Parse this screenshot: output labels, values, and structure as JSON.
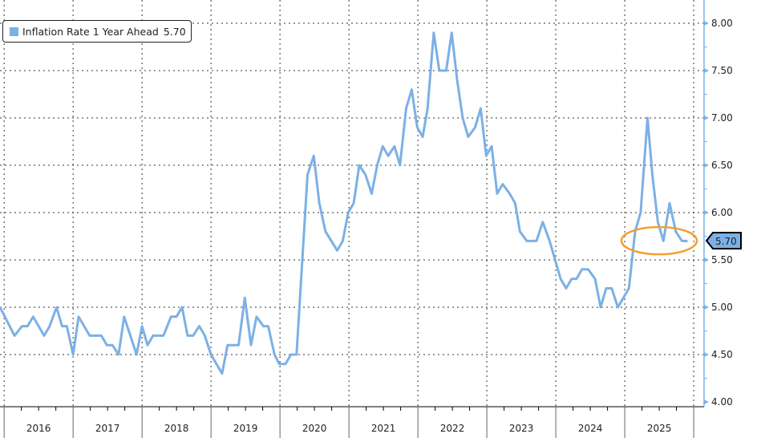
{
  "chart_data": {
    "type": "line",
    "title": "",
    "xlabel": "",
    "ylabel": "",
    "xlim": [
      2015.94,
      2026.15
    ],
    "ylim": [
      4.0,
      8.0
    ],
    "grid": true,
    "y_ticks": [
      "4.00",
      "4.50",
      "5.00",
      "5.50",
      "6.00",
      "6.50",
      "7.00",
      "7.50",
      "8.00"
    ],
    "x_tick_labels": [
      "2016",
      "2017",
      "2018",
      "2019",
      "2020",
      "2021",
      "2022",
      "2023",
      "2024",
      "2025"
    ],
    "legend": {
      "position": "top-left",
      "label": "Inflation Rate 1 Year Ahead",
      "value": "5.70"
    },
    "last_value_label": "5.70",
    "highlight": {
      "type": "ellipse",
      "color": "#f0a030",
      "around": "last values 2025"
    },
    "series": [
      {
        "name": "Inflation Rate 1 Year Ahead",
        "color": "#7cb0e6",
        "x": [
          2015.94,
          2016.15,
          2016.26,
          2016.34,
          2016.42,
          2016.58,
          2016.66,
          2016.76,
          2016.84,
          2016.91,
          2017.0,
          2017.08,
          2017.24,
          2017.41,
          2017.49,
          2017.57,
          2017.66,
          2017.74,
          2017.92,
          2018.0,
          2018.08,
          2018.16,
          2018.31,
          2018.42,
          2018.5,
          2018.58,
          2018.66,
          2018.74,
          2018.83,
          2018.91,
          2019.0,
          2019.16,
          2019.24,
          2019.4,
          2019.49,
          2019.58,
          2019.66,
          2019.76,
          2019.83,
          2019.92,
          2019.99,
          2020.08,
          2020.16,
          2020.24,
          2020.4,
          2020.49,
          2020.57,
          2020.66,
          2020.83,
          2020.91,
          2020.99,
          2021.07,
          2021.15,
          2021.24,
          2021.33,
          2021.41,
          2021.49,
          2021.57,
          2021.66,
          2021.74,
          2021.83,
          2021.91,
          2021.99,
          2022.07,
          2022.14,
          2022.23,
          2022.31,
          2022.41,
          2022.49,
          2022.57,
          2022.65,
          2022.73,
          2022.83,
          2022.91,
          2022.99,
          2023.07,
          2023.15,
          2023.23,
          2023.33,
          2023.41,
          2023.48,
          2023.58,
          2023.72,
          2023.81,
          2023.91,
          2023.99,
          2024.07,
          2024.15,
          2024.23,
          2024.3,
          2024.38,
          2024.47,
          2024.57,
          2024.65,
          2024.73,
          2024.81,
          2024.9,
          2025.06,
          2025.15,
          2025.23,
          2025.33,
          2025.4,
          2025.48,
          2025.56,
          2025.65,
          2025.74,
          2025.83,
          2025.91
        ],
        "y": [
          5.0,
          4.7,
          4.8,
          4.8,
          4.9,
          4.7,
          4.8,
          5.0,
          4.8,
          4.8,
          4.5,
          4.9,
          4.7,
          4.7,
          4.6,
          4.6,
          4.5,
          4.9,
          4.5,
          4.8,
          4.6,
          4.7,
          4.7,
          4.9,
          4.9,
          5.0,
          4.7,
          4.7,
          4.8,
          4.7,
          4.5,
          4.3,
          4.6,
          4.6,
          5.1,
          4.6,
          4.9,
          4.8,
          4.8,
          4.5,
          4.4,
          4.4,
          4.5,
          4.5,
          6.4,
          6.6,
          6.1,
          5.8,
          5.6,
          5.7,
          6.0,
          6.1,
          6.5,
          6.4,
          6.2,
          6.5,
          6.7,
          6.6,
          6.7,
          6.5,
          7.1,
          7.3,
          6.9,
          6.8,
          7.1,
          7.9,
          7.5,
          7.5,
          7.9,
          7.4,
          7.0,
          6.8,
          6.9,
          7.1,
          6.6,
          6.7,
          6.2,
          6.3,
          6.2,
          6.1,
          5.8,
          5.7,
          5.7,
          5.9,
          5.7,
          5.5,
          5.3,
          5.2,
          5.3,
          5.3,
          5.4,
          5.4,
          5.3,
          5.0,
          5.2,
          5.2,
          5.0,
          5.2,
          5.8,
          6.0,
          7.0,
          6.4,
          5.9,
          5.7,
          6.1,
          5.8,
          5.7,
          5.7
        ]
      }
    ]
  }
}
